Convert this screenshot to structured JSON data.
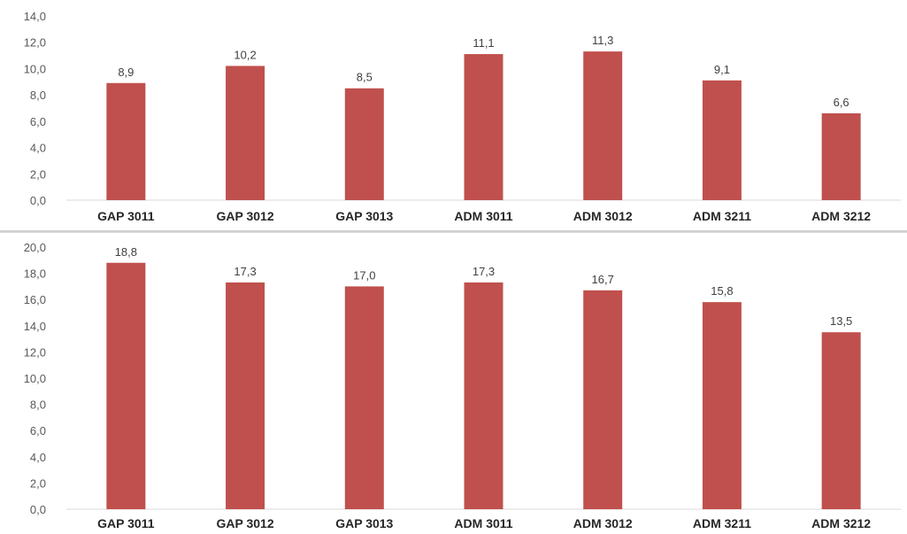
{
  "chart_data": [
    {
      "type": "bar",
      "categories": [
        "GAP 3011",
        "GAP 3012",
        "GAP 3013",
        "ADM 3011",
        "ADM 3012",
        "ADM 3211",
        "ADM 3212"
      ],
      "values": [
        8.9,
        10.2,
        8.5,
        11.1,
        11.3,
        9.1,
        6.6
      ],
      "data_labels": [
        "8,9",
        "10,2",
        "8,5",
        "11,1",
        "11,3",
        "9,1",
        "6,6"
      ],
      "yticks": [
        "0,0",
        "2,0",
        "4,0",
        "6,0",
        "8,0",
        "10,0",
        "12,0",
        "14,0"
      ],
      "ylim": [
        0,
        14
      ],
      "grid": false,
      "bar_color": "#c0504d"
    },
    {
      "type": "bar",
      "categories": [
        "GAP 3011",
        "GAP 3012",
        "GAP 3013",
        "ADM 3011",
        "ADM 3012",
        "ADM 3211",
        "ADM 3212"
      ],
      "values": [
        18.8,
        17.3,
        17.0,
        17.3,
        16.7,
        15.8,
        13.5
      ],
      "data_labels": [
        "18,8",
        "17,3",
        "17,0",
        "17,3",
        "16,7",
        "15,8",
        "13,5"
      ],
      "yticks": [
        "0,0",
        "2,0",
        "4,0",
        "6,0",
        "8,0",
        "10,0",
        "12,0",
        "14,0",
        "16,0",
        "18,0",
        "20,0"
      ],
      "ylim": [
        0,
        20
      ],
      "grid": false,
      "bar_color": "#c0504d"
    }
  ]
}
